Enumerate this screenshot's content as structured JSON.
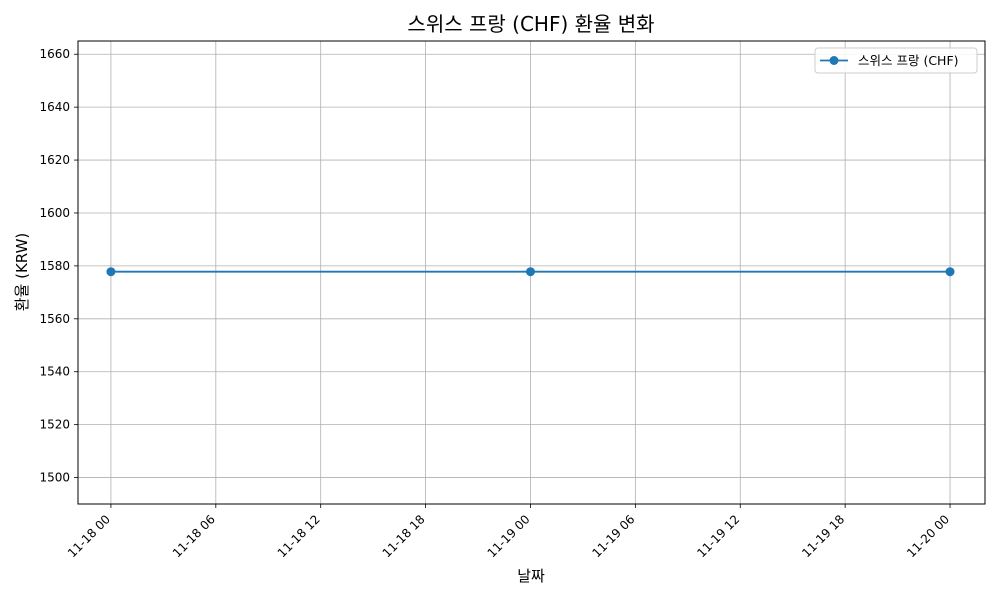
{
  "chart_data": {
    "type": "line",
    "title": "스위스 프랑 (CHF) 환율 변화",
    "xlabel": "날짜",
    "ylabel": "환율 (KRW)",
    "xlim": [
      "2024-11-17T22:07",
      "2024-11-20T02:00"
    ],
    "ylim": [
      1490,
      1665
    ],
    "grid": true,
    "legend_position": "top-right",
    "x_ticks": [
      {
        "value": "2024-11-18T00:00",
        "label": "11-18 00"
      },
      {
        "value": "2024-11-18T06:00",
        "label": "11-18 06"
      },
      {
        "value": "2024-11-18T12:00",
        "label": "11-18 12"
      },
      {
        "value": "2024-11-18T18:00",
        "label": "11-18 18"
      },
      {
        "value": "2024-11-19T00:00",
        "label": "11-19 00"
      },
      {
        "value": "2024-11-19T06:00",
        "label": "11-19 06"
      },
      {
        "value": "2024-11-19T12:00",
        "label": "11-19 12"
      },
      {
        "value": "2024-11-19T18:00",
        "label": "11-19 18"
      },
      {
        "value": "2024-11-20T00:00",
        "label": "11-20 00"
      }
    ],
    "y_ticks": [
      1500,
      1520,
      1540,
      1560,
      1580,
      1600,
      1620,
      1640,
      1660
    ],
    "series": [
      {
        "name": "스위스 프랑 (CHF)",
        "color": "#1f77b4",
        "marker": "circle",
        "x": [
          "2024-11-18T00:00",
          "2024-11-19T00:00",
          "2024-11-20T00:00"
        ],
        "y": [
          1577.8,
          1577.8,
          1577.8
        ]
      }
    ]
  }
}
